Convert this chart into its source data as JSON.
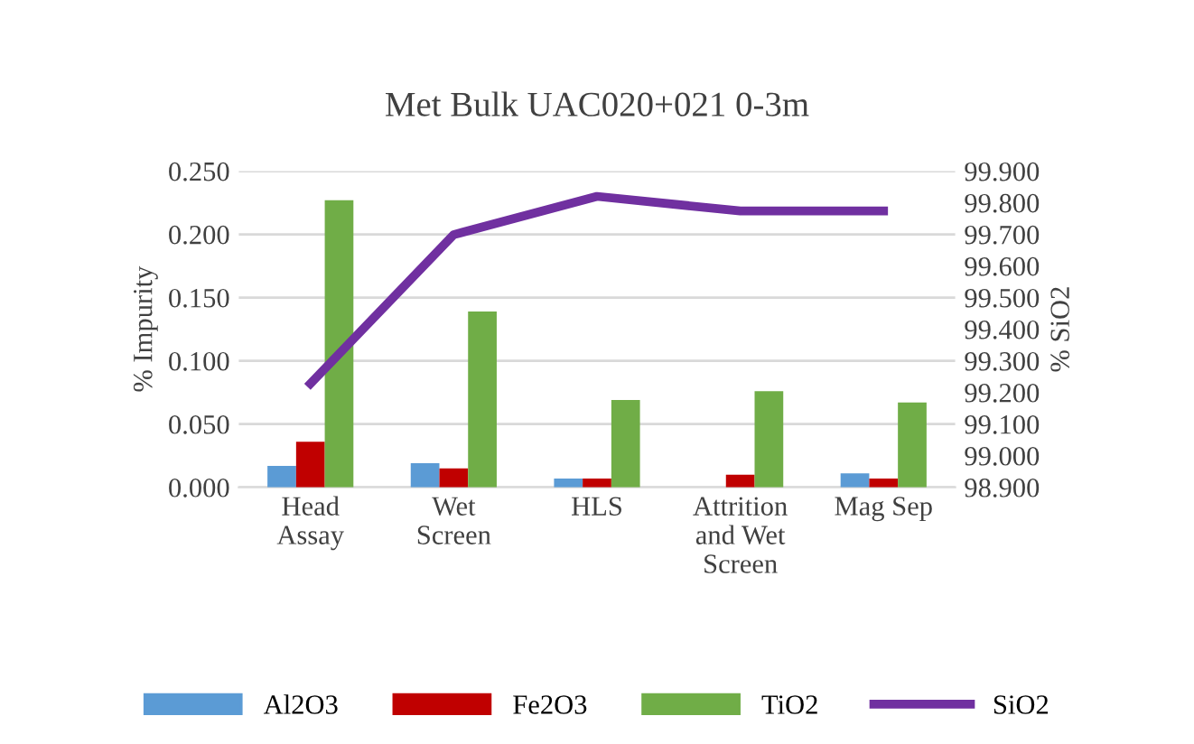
{
  "chart_data": {
    "type": "bar",
    "title": "Met Bulk UAC020+021 0-3m",
    "ylabel": "% Impurity",
    "y2label": "% SiO2",
    "categories": [
      "Head\nAssay",
      "Wet\nScreen",
      "HLS",
      "Attrition\nand Wet\nScreen",
      "Mag Sep"
    ],
    "series": [
      {
        "name": "Al2O3",
        "color": "#5b9bd5",
        "values": [
          0.017,
          0.019,
          0.007,
          0.0,
          0.011
        ]
      },
      {
        "name": "Fe2O3",
        "color": "#c00000",
        "values": [
          0.036,
          0.015,
          0.007,
          0.01,
          0.007
        ]
      },
      {
        "name": "TiO2",
        "color": "#70ad47",
        "values": [
          0.227,
          0.139,
          0.069,
          0.076,
          0.067
        ]
      },
      {
        "name": "SiO2",
        "color": "#7030a0",
        "type": "line",
        "axis": "y2",
        "values": [
          99.228,
          99.699,
          99.82,
          99.774,
          99.774
        ]
      }
    ],
    "ylim": [
      0,
      0.25
    ],
    "yticks": [
      {
        "value": 0,
        "label": "0.000"
      },
      {
        "value": 0.05,
        "label": "0.050"
      },
      {
        "value": 0.1,
        "label": "0.100"
      },
      {
        "value": 0.15,
        "label": "0.150"
      },
      {
        "value": 0.2,
        "label": "0.200"
      },
      {
        "value": 0.25,
        "label": "0.250"
      }
    ],
    "y2lim": [
      98.9,
      99.9
    ],
    "y2ticks": [
      {
        "value": 98.9,
        "label": "98.900"
      },
      {
        "value": 99.0,
        "label": "99.000"
      },
      {
        "value": 99.1,
        "label": "99.100"
      },
      {
        "value": 99.2,
        "label": "99.200"
      },
      {
        "value": 99.3,
        "label": "99.300"
      },
      {
        "value": 99.4,
        "label": "99.400"
      },
      {
        "value": 99.5,
        "label": "99.500"
      },
      {
        "value": 99.6,
        "label": "99.600"
      },
      {
        "value": 99.7,
        "label": "99.700"
      },
      {
        "value": 99.8,
        "label": "99.800"
      },
      {
        "value": 99.9,
        "label": "99.900"
      }
    ],
    "grid": "y",
    "legend": "bottom",
    "marker": "none",
    "line_style": "solid"
  }
}
